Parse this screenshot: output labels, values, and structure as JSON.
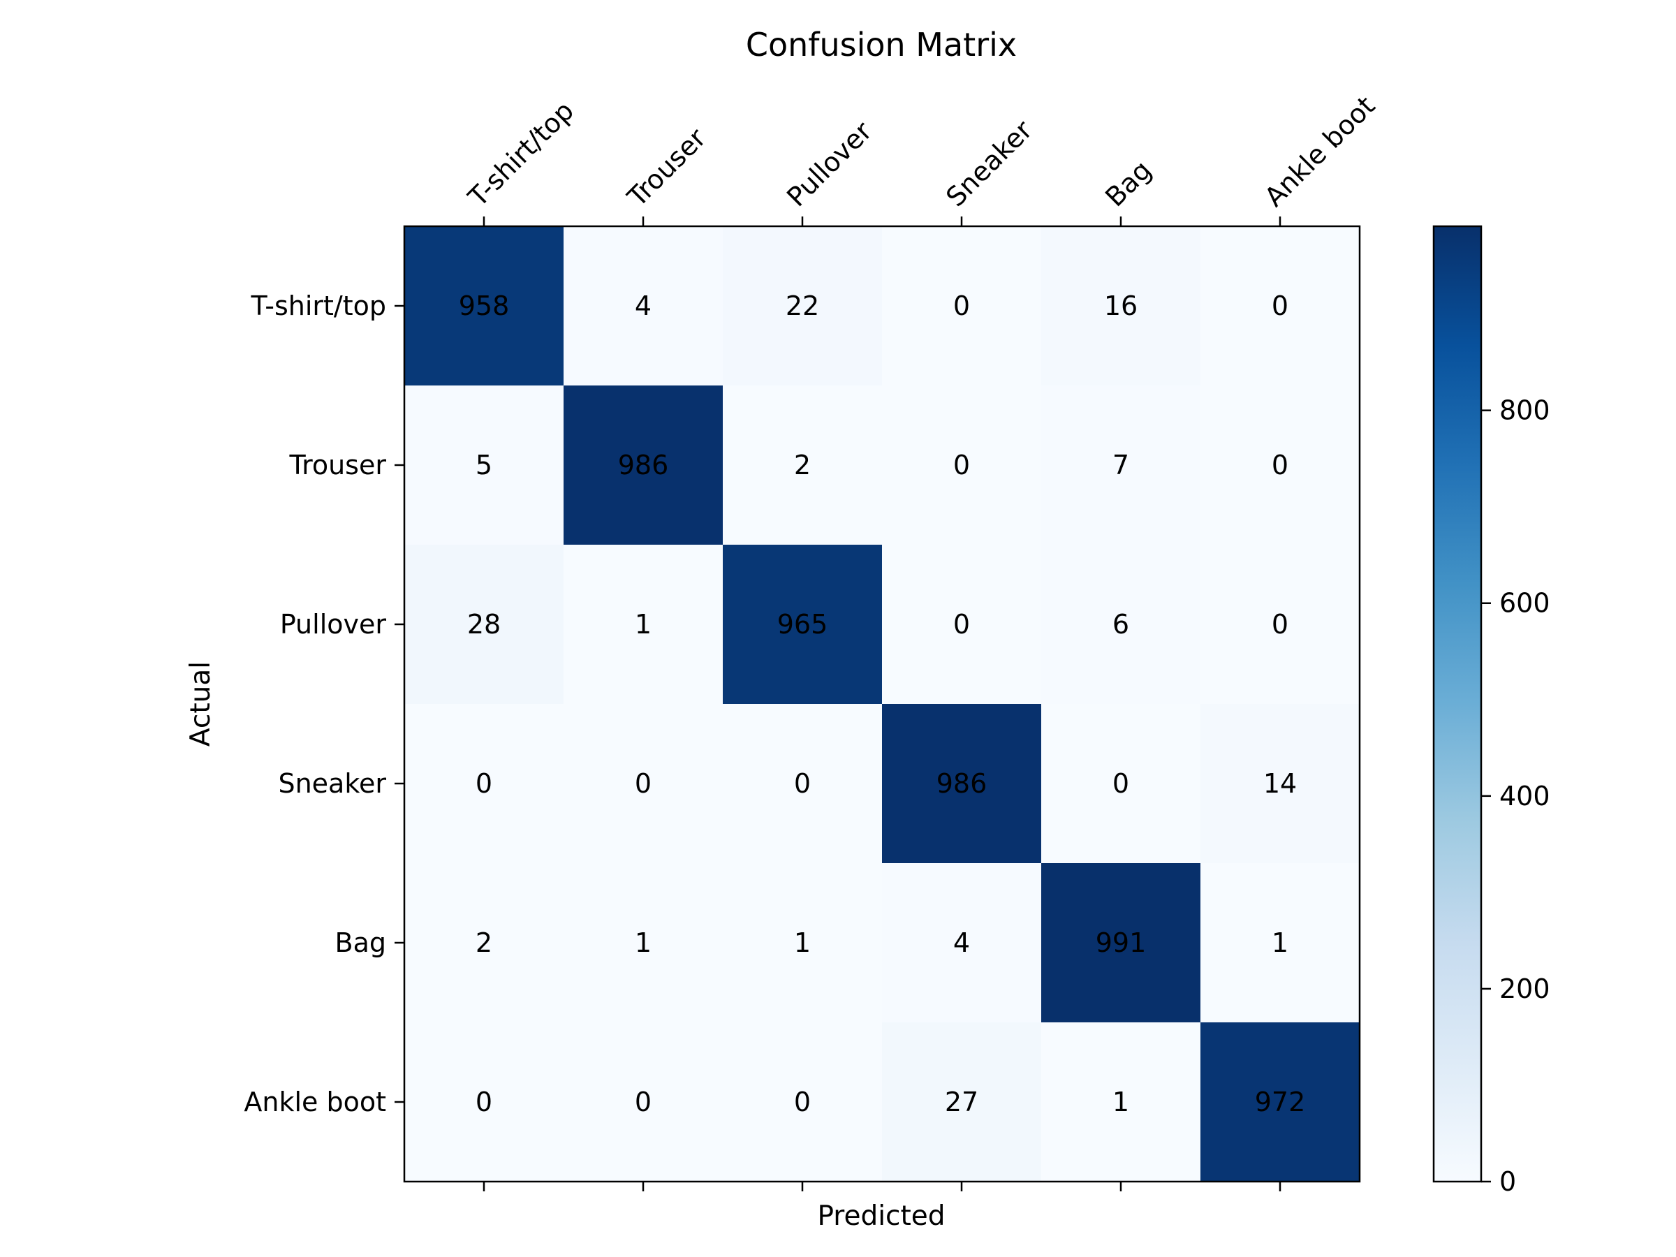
{
  "chart_data": {
    "type": "heatmap",
    "title": "Confusion Matrix",
    "xlabel": "Predicted",
    "ylabel": "Actual",
    "x_categories": [
      "T-shirt/top",
      "Trouser",
      "Pullover",
      "Sneaker",
      "Bag",
      "Ankle boot"
    ],
    "y_categories": [
      "T-shirt/top",
      "Trouser",
      "Pullover",
      "Sneaker",
      "Bag",
      "Ankle boot"
    ],
    "values": [
      [
        958,
        4,
        22,
        0,
        16,
        0
      ],
      [
        5,
        986,
        2,
        0,
        7,
        0
      ],
      [
        28,
        1,
        965,
        0,
        6,
        0
      ],
      [
        0,
        0,
        0,
        986,
        0,
        14
      ],
      [
        2,
        1,
        1,
        4,
        991,
        1
      ],
      [
        0,
        0,
        0,
        27,
        1,
        972
      ]
    ],
    "colormap": "Blues",
    "colormap_stops": [
      "#f7fbff",
      "#deebf7",
      "#c6dbef",
      "#9ecae1",
      "#6baed6",
      "#4292c6",
      "#2171b5",
      "#08519c",
      "#08306b"
    ],
    "vmin": 0,
    "vmax": 991,
    "colorbar": {
      "ticks": [
        0,
        200,
        400,
        600,
        800
      ],
      "tick_labels": [
        "0",
        "200",
        "400",
        "600",
        "800"
      ]
    },
    "x_ticks_position": "top-and-bottom",
    "x_tick_labels_position": "top",
    "x_tick_label_rotation": 45,
    "grid": false,
    "text_color": "#000000"
  }
}
